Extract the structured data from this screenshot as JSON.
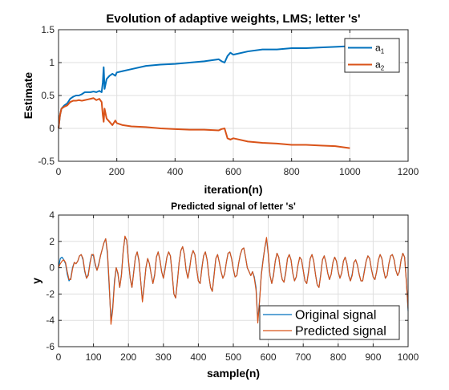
{
  "chart_data": [
    {
      "type": "line",
      "title": "Evolution of adaptive weights, LMS; letter 's'",
      "xlabel": "iteration(n)",
      "ylabel": "Estimate",
      "xlim": [
        0,
        1200
      ],
      "ylim": [
        -0.5,
        1.5
      ],
      "xticks": [
        "0",
        "200",
        "400",
        "600",
        "800",
        "1000",
        "1200"
      ],
      "yticks": [
        "-0.5",
        "0",
        "0.5",
        "1",
        "1.5"
      ],
      "grid": true,
      "legend": "top-right",
      "series": [
        {
          "name": "a1",
          "name_base": "a",
          "name_sub": "1",
          "color": "#0072BD",
          "x": [
            0,
            5,
            10,
            20,
            30,
            40,
            50,
            60,
            70,
            80,
            90,
            100,
            110,
            120,
            130,
            140,
            148,
            152,
            155,
            158,
            165,
            175,
            185,
            195,
            200,
            220,
            250,
            300,
            350,
            400,
            450,
            500,
            550,
            560,
            570,
            580,
            590,
            600,
            650,
            700,
            750,
            800,
            850,
            900,
            950,
            1000
          ],
          "y": [
            0,
            0.2,
            0.3,
            0.35,
            0.38,
            0.45,
            0.48,
            0.5,
            0.5,
            0.52,
            0.55,
            0.55,
            0.55,
            0.56,
            0.55,
            0.57,
            0.55,
            0.7,
            0.93,
            0.6,
            0.75,
            0.8,
            0.83,
            0.8,
            0.85,
            0.87,
            0.9,
            0.95,
            0.97,
            0.98,
            1.0,
            1.02,
            1.05,
            1.02,
            1.0,
            1.1,
            1.15,
            1.12,
            1.17,
            1.2,
            1.2,
            1.22,
            1.22,
            1.23,
            1.24,
            1.25
          ]
        },
        {
          "name": "a2",
          "name_base": "a",
          "name_sub": "2",
          "color": "#D95319",
          "x": [
            0,
            5,
            10,
            20,
            30,
            40,
            50,
            60,
            70,
            80,
            90,
            100,
            110,
            120,
            130,
            140,
            148,
            152,
            155,
            158,
            165,
            175,
            185,
            195,
            200,
            220,
            250,
            300,
            350,
            400,
            450,
            500,
            550,
            560,
            570,
            580,
            590,
            600,
            650,
            700,
            750,
            800,
            850,
            900,
            950,
            1000
          ],
          "y": [
            0,
            0.2,
            0.3,
            0.33,
            0.35,
            0.4,
            0.42,
            0.42,
            0.43,
            0.42,
            0.43,
            0.44,
            0.45,
            0.46,
            0.43,
            0.45,
            0.4,
            0.2,
            0.1,
            0.3,
            0.15,
            0.1,
            0.05,
            0.12,
            0.08,
            0.05,
            0.03,
            0.02,
            0.0,
            -0.01,
            -0.02,
            -0.02,
            -0.03,
            -0.01,
            0.0,
            -0.15,
            -0.17,
            -0.15,
            -0.2,
            -0.22,
            -0.23,
            -0.25,
            -0.25,
            -0.26,
            -0.27,
            -0.3
          ]
        }
      ]
    },
    {
      "type": "line",
      "title": "Predicted signal of letter 's'",
      "xlabel": "sample(n)",
      "ylabel": "y",
      "xlim": [
        0,
        1000
      ],
      "ylim": [
        -6,
        4
      ],
      "xticks": [
        "0",
        "100",
        "200",
        "300",
        "400",
        "500",
        "600",
        "700",
        "800",
        "900",
        "1000"
      ],
      "yticks": [
        "-6",
        "-4",
        "-2",
        "0",
        "2",
        "4"
      ],
      "grid": true,
      "legend": "bottom-right",
      "series": [
        {
          "name": "Original signal",
          "color": "#0072BD",
          "x": [
            0,
            5,
            10,
            15,
            20,
            25,
            30,
            35,
            40,
            45,
            50,
            55,
            60,
            65,
            70,
            75,
            80,
            85,
            90,
            95,
            100,
            105,
            110,
            115,
            120,
            125,
            130,
            135,
            140,
            145,
            150,
            155,
            160,
            165,
            170,
            175,
            180,
            185,
            190,
            195,
            200,
            205,
            210,
            215,
            220,
            225,
            230,
            235,
            240,
            245,
            250,
            255,
            260,
            265,
            270,
            275,
            280,
            285,
            290,
            295,
            300,
            305,
            310,
            315,
            320,
            325,
            330,
            335,
            340,
            345,
            350,
            355,
            360,
            365,
            370,
            375,
            380,
            385,
            390,
            395,
            400,
            405,
            410,
            415,
            420,
            425,
            430,
            435,
            440,
            445,
            450,
            455,
            460,
            465,
            470,
            475,
            480,
            485,
            490,
            495,
            500,
            505,
            510,
            515,
            520,
            525,
            530,
            535,
            540,
            545,
            550,
            555,
            560,
            565,
            570,
            575,
            580,
            585,
            590,
            595,
            600,
            605,
            610,
            615,
            620,
            625,
            630,
            635,
            640,
            645,
            650,
            655,
            660,
            665,
            670,
            675,
            680,
            685,
            690,
            695,
            700,
            705,
            710,
            715,
            720,
            725,
            730,
            735,
            740,
            745,
            750,
            755,
            760,
            765,
            770,
            775,
            780,
            785,
            790,
            795,
            800,
            805,
            810,
            815,
            820,
            825,
            830,
            835,
            840,
            845,
            850,
            855,
            860,
            865,
            870,
            875,
            880,
            885,
            890,
            895,
            900,
            905,
            910,
            915,
            920,
            925,
            930,
            935,
            940,
            945,
            950,
            955,
            960,
            965,
            970,
            975,
            980,
            985,
            990,
            995,
            1000
          ],
          "y": [
            0.0,
            0.7,
            0.8,
            0.6,
            0.3,
            -0.5,
            -1.0,
            -0.8,
            0.0,
            0.4,
            0.3,
            0.5,
            0.9,
            1.0,
            0.6,
            -0.3,
            -0.8,
            -0.5,
            0.4,
            1.0,
            0.9,
            0.2,
            -0.2,
            0.3,
            0.9,
            1.4,
            1.9,
            2.2,
            1.0,
            -1.5,
            -4.0,
            -3.0,
            -1.0,
            0.0,
            -0.5,
            -1.5,
            -0.5,
            1.3,
            2.3,
            2.1,
            0.5,
            -0.8,
            -1.5,
            -0.3,
            0.8,
            1.2,
            0.5,
            -1.0,
            -2.5,
            -1.3,
            0.0,
            0.7,
            0.3,
            -0.5,
            -1.2,
            -0.5,
            0.8,
            1.2,
            0.6,
            -0.3,
            -0.8,
            0.0,
            0.8,
            1.2,
            0.9,
            -0.5,
            -2.0,
            -2.3,
            -1.0,
            0.4,
            1.3,
            1.6,
            1.0,
            -0.2,
            -0.8,
            0.0,
            0.9,
            1.3,
            1.0,
            -0.1,
            -1.0,
            -1.2,
            0.0,
            0.9,
            1.2,
            0.6,
            -0.6,
            -1.5,
            -1.8,
            -0.5,
            0.7,
            1.0,
            0.4,
            -0.3,
            -0.8,
            -0.5,
            0.4,
            1.1,
            1.2,
            0.7,
            -0.1,
            -0.7,
            -0.6,
            0.3,
            1.0,
            1.4,
            1.5,
            0.8,
            0.0,
            -0.3,
            -0.6,
            -0.3,
            -0.7,
            -1.5,
            -4.0,
            -2.5,
            -0.5,
            0.6,
            1.5,
            2.2,
            1.0,
            -0.6,
            -1.2,
            -0.5,
            0.5,
            1.1,
            0.8,
            -0.2,
            -0.9,
            -1.1,
            -0.3,
            0.7,
            1.0,
            0.6,
            -0.4,
            -1.0,
            -0.7,
            0.2,
            0.8,
            0.6,
            -0.2,
            -1.0,
            -1.2,
            -0.3,
            0.7,
            1.0,
            0.5,
            -0.5,
            -1.3,
            -1.5,
            -0.5,
            0.6,
            0.9,
            0.4,
            -0.4,
            -0.9,
            -0.5,
            0.4,
            0.8,
            0.5,
            -0.3,
            -0.8,
            -0.4,
            0.5,
            0.8,
            0.3,
            -0.6,
            -1.0,
            -0.5,
            0.4,
            0.6,
            0.2,
            -0.5,
            -1.0,
            -1.0,
            -0.2,
            0.5,
            0.9,
            0.7,
            -0.1,
            -0.7,
            -0.9,
            -0.3,
            0.6,
            1.0,
            0.7,
            -0.2,
            -0.8,
            -0.6,
            0.3,
            0.9,
            1.0,
            0.6,
            -0.2,
            -0.6,
            -0.3,
            0.6,
            1.1,
            0.8,
            -1.0,
            -3.3
          ]
        },
        {
          "name": "Predicted signal",
          "color": "#D95319",
          "x": [
            0,
            5,
            10,
            15,
            20,
            25,
            30,
            35,
            40,
            45,
            50,
            55,
            60,
            65,
            70,
            75,
            80,
            85,
            90,
            95,
            100,
            105,
            110,
            115,
            120,
            125,
            130,
            135,
            140,
            145,
            150,
            155,
            160,
            165,
            170,
            175,
            180,
            185,
            190,
            195,
            200,
            205,
            210,
            215,
            220,
            225,
            230,
            235,
            240,
            245,
            250,
            255,
            260,
            265,
            270,
            275,
            280,
            285,
            290,
            295,
            300,
            305,
            310,
            315,
            320,
            325,
            330,
            335,
            340,
            345,
            350,
            355,
            360,
            365,
            370,
            375,
            380,
            385,
            390,
            395,
            400,
            405,
            410,
            415,
            420,
            425,
            430,
            435,
            440,
            445,
            450,
            455,
            460,
            465,
            470,
            475,
            480,
            485,
            490,
            495,
            500,
            505,
            510,
            515,
            520,
            525,
            530,
            535,
            540,
            545,
            550,
            555,
            560,
            565,
            570,
            575,
            580,
            585,
            590,
            595,
            600,
            605,
            610,
            615,
            620,
            625,
            630,
            635,
            640,
            645,
            650,
            655,
            660,
            665,
            670,
            675,
            680,
            685,
            690,
            695,
            700,
            705,
            710,
            715,
            720,
            725,
            730,
            735,
            740,
            745,
            750,
            755,
            760,
            765,
            770,
            775,
            780,
            785,
            790,
            795,
            800,
            805,
            810,
            815,
            820,
            825,
            830,
            835,
            840,
            845,
            850,
            855,
            860,
            865,
            870,
            875,
            880,
            885,
            890,
            895,
            900,
            905,
            910,
            915,
            920,
            925,
            930,
            935,
            940,
            945,
            950,
            955,
            960,
            965,
            970,
            975,
            980,
            985,
            990,
            995,
            1000
          ],
          "y": [
            0.0,
            0.3,
            0.5,
            0.6,
            0.4,
            -0.3,
            -0.9,
            -0.9,
            -0.1,
            0.4,
            0.3,
            0.5,
            0.9,
            1.0,
            0.7,
            -0.2,
            -0.8,
            -0.6,
            0.3,
            1.0,
            1.0,
            0.3,
            -0.2,
            0.2,
            0.9,
            1.4,
            1.9,
            2.2,
            1.2,
            -1.2,
            -4.3,
            -3.2,
            -1.2,
            0.0,
            -0.4,
            -1.5,
            -0.6,
            1.2,
            2.4,
            2.1,
            0.6,
            -0.8,
            -1.5,
            -0.4,
            0.8,
            1.2,
            0.6,
            -1.0,
            -2.6,
            -1.4,
            0.0,
            0.7,
            0.3,
            -0.5,
            -1.2,
            -0.6,
            0.8,
            1.2,
            0.6,
            -0.3,
            -0.8,
            -0.1,
            0.8,
            1.2,
            0.9,
            -0.4,
            -2.0,
            -2.3,
            -1.1,
            0.4,
            1.3,
            1.6,
            1.0,
            -0.2,
            -0.8,
            -0.1,
            0.9,
            1.3,
            1.0,
            -0.1,
            -1.0,
            -1.2,
            -0.1,
            0.9,
            1.2,
            0.6,
            -0.6,
            -1.5,
            -1.8,
            -0.6,
            0.7,
            1.0,
            0.4,
            -0.3,
            -0.8,
            -0.5,
            0.4,
            1.1,
            1.2,
            0.7,
            -0.1,
            -0.7,
            -0.6,
            0.3,
            1.0,
            1.4,
            1.5,
            0.8,
            0.0,
            -0.3,
            -0.6,
            -0.3,
            -0.8,
            -1.7,
            -4.2,
            -2.6,
            -0.6,
            0.5,
            1.5,
            2.3,
            1.1,
            -0.6,
            -1.2,
            -0.6,
            0.5,
            1.1,
            0.8,
            -0.2,
            -0.9,
            -1.1,
            -0.4,
            0.7,
            1.0,
            0.6,
            -0.4,
            -1.0,
            -0.7,
            0.2,
            0.8,
            0.6,
            -0.2,
            -1.0,
            -1.2,
            -0.4,
            0.7,
            1.0,
            0.5,
            -0.5,
            -1.3,
            -1.5,
            -0.6,
            0.6,
            0.9,
            0.4,
            -0.4,
            -0.9,
            -0.5,
            0.4,
            0.8,
            0.5,
            -0.3,
            -0.8,
            -0.4,
            0.5,
            0.8,
            0.3,
            -0.6,
            -1.0,
            -0.6,
            0.4,
            0.6,
            0.2,
            -0.5,
            -1.0,
            -1.0,
            -0.3,
            0.5,
            0.9,
            0.7,
            -0.1,
            -0.7,
            -0.9,
            -0.3,
            0.6,
            1.0,
            0.7,
            -0.2,
            -0.8,
            -0.6,
            0.3,
            0.9,
            1.0,
            0.6,
            -0.2,
            -0.6,
            -0.3,
            0.6,
            1.1,
            0.8,
            -1.1,
            -3.1
          ]
        }
      ]
    }
  ]
}
